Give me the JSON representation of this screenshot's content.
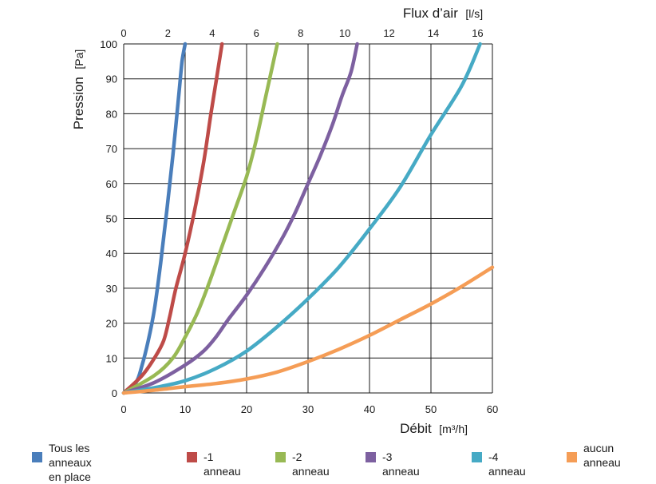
{
  "chart_data": {
    "type": "line",
    "xlabel": "Débit",
    "xunit": "[m³/h]",
    "x2label": "Flux d’air",
    "x2unit": "[l/s]",
    "ylabel": "Pression",
    "yunit": "[Pa]",
    "xlim": [
      0,
      60
    ],
    "x2lim": [
      0,
      16.67
    ],
    "ylim": [
      0,
      100
    ],
    "xticks": [
      0,
      10,
      20,
      30,
      40,
      50,
      60
    ],
    "x2ticks": [
      0,
      2,
      4,
      6,
      8,
      10,
      12,
      14,
      16
    ],
    "yticks": [
      0,
      10,
      20,
      30,
      40,
      50,
      60,
      70,
      80,
      90,
      100
    ],
    "grid": true,
    "legend_position": "bottom",
    "series": [
      {
        "name": "Tous les anneaux\nen place",
        "color": "#4a7ebb",
        "points": [
          [
            0,
            0
          ],
          [
            2,
            3
          ],
          [
            3,
            8
          ],
          [
            4,
            15
          ],
          [
            5,
            24
          ],
          [
            6,
            37
          ],
          [
            7,
            52
          ],
          [
            8,
            68
          ],
          [
            9,
            86
          ],
          [
            9.5,
            95
          ],
          [
            10,
            100
          ]
        ]
      },
      {
        "name": "-1 anneau",
        "color": "#be4b48",
        "points": [
          [
            0,
            0
          ],
          [
            3,
            5
          ],
          [
            5,
            10
          ],
          [
            6.5,
            15
          ],
          [
            7.5,
            22
          ],
          [
            8.5,
            30
          ],
          [
            10,
            40
          ],
          [
            11.5,
            52
          ],
          [
            13,
            66
          ],
          [
            14.2,
            80
          ],
          [
            15.1,
            90
          ],
          [
            16,
            100
          ]
        ]
      },
      {
        "name": "-2 anneau",
        "color": "#98b954",
        "points": [
          [
            0,
            0
          ],
          [
            5,
            5
          ],
          [
            8,
            10
          ],
          [
            10,
            16
          ],
          [
            12,
            23
          ],
          [
            14,
            32
          ],
          [
            16,
            42
          ],
          [
            18,
            52
          ],
          [
            20,
            62
          ],
          [
            21.5,
            72
          ],
          [
            23,
            84
          ],
          [
            24,
            92
          ],
          [
            25,
            100
          ]
        ]
      },
      {
        "name": "-3 anneau",
        "color": "#7d60a0",
        "points": [
          [
            0,
            0
          ],
          [
            5,
            3
          ],
          [
            10,
            8
          ],
          [
            13,
            12
          ],
          [
            15,
            16
          ],
          [
            17,
            21
          ],
          [
            20,
            28
          ],
          [
            23,
            36
          ],
          [
            26,
            45
          ],
          [
            28,
            52
          ],
          [
            30,
            60
          ],
          [
            32,
            68
          ],
          [
            34,
            77
          ],
          [
            35.5,
            85
          ],
          [
            37,
            92
          ],
          [
            38,
            100
          ]
        ]
      },
      {
        "name": "-4 anneau",
        "color": "#46aac5",
        "points": [
          [
            0,
            0
          ],
          [
            5,
            1.5
          ],
          [
            10,
            3.5
          ],
          [
            15,
            7
          ],
          [
            20,
            12
          ],
          [
            25,
            19
          ],
          [
            30,
            27
          ],
          [
            35,
            36
          ],
          [
            40,
            47
          ],
          [
            45,
            59
          ],
          [
            50,
            74
          ],
          [
            55,
            88
          ],
          [
            58,
            100
          ]
        ]
      },
      {
        "name": "aucun\nanneau",
        "color": "#f59d56",
        "points": [
          [
            0,
            0
          ],
          [
            5,
            0.8
          ],
          [
            10,
            1.8
          ],
          [
            15,
            2.7
          ],
          [
            20,
            4
          ],
          [
            25,
            6
          ],
          [
            30,
            9
          ],
          [
            35,
            12.5
          ],
          [
            40,
            16.5
          ],
          [
            45,
            21
          ],
          [
            50,
            25.5
          ],
          [
            55,
            30.5
          ],
          [
            60,
            36
          ]
        ]
      }
    ]
  }
}
